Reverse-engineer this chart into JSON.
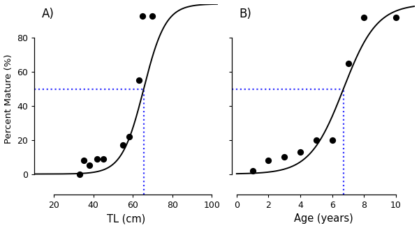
{
  "panel_A": {
    "label": "A)",
    "xlabel": "TL (cm)",
    "xlim": [
      10,
      103
    ],
    "xticks": [
      20,
      40,
      60,
      80,
      100
    ],
    "ylim": [
      -12,
      100
    ],
    "yticks": [
      0,
      20,
      40,
      60,
      80
    ],
    "scatter_x": [
      33,
      35,
      38,
      42,
      45,
      55,
      58,
      63,
      65,
      70
    ],
    "scatter_y": [
      0,
      8,
      5,
      9,
      9,
      17,
      22,
      55,
      93,
      93
    ],
    "curve_L50": 65.5,
    "curve_k": 0.18,
    "curve_xmin": 10,
    "curve_xmax": 103,
    "vline_x": 65.5,
    "hline_y": 50,
    "dotted_color": "#3333ff"
  },
  "panel_B": {
    "label": "B)",
    "xlabel": "Age (years)",
    "xlim": [
      -0.3,
      11.2
    ],
    "xticks": [
      0,
      2,
      4,
      6,
      8,
      10
    ],
    "ylim": [
      -12,
      100
    ],
    "yticks": [
      0,
      20,
      40,
      60,
      80
    ],
    "scatter_x": [
      1,
      2,
      3,
      4,
      5,
      6,
      7,
      8,
      10
    ],
    "scatter_y": [
      2,
      8,
      10,
      13,
      20,
      20,
      65,
      92,
      92
    ],
    "curve_L50": 6.7,
    "curve_k": 0.95,
    "curve_xmin": 0,
    "curve_xmax": 11.2,
    "vline_x": 6.7,
    "hline_y": 50,
    "dotted_color": "#3333ff"
  },
  "ylabel": "Percent Mature (%)",
  "bg_color": "#ffffff",
  "line_color": "#000000",
  "scatter_color": "#000000",
  "scatter_size": 32,
  "line_width": 1.4
}
